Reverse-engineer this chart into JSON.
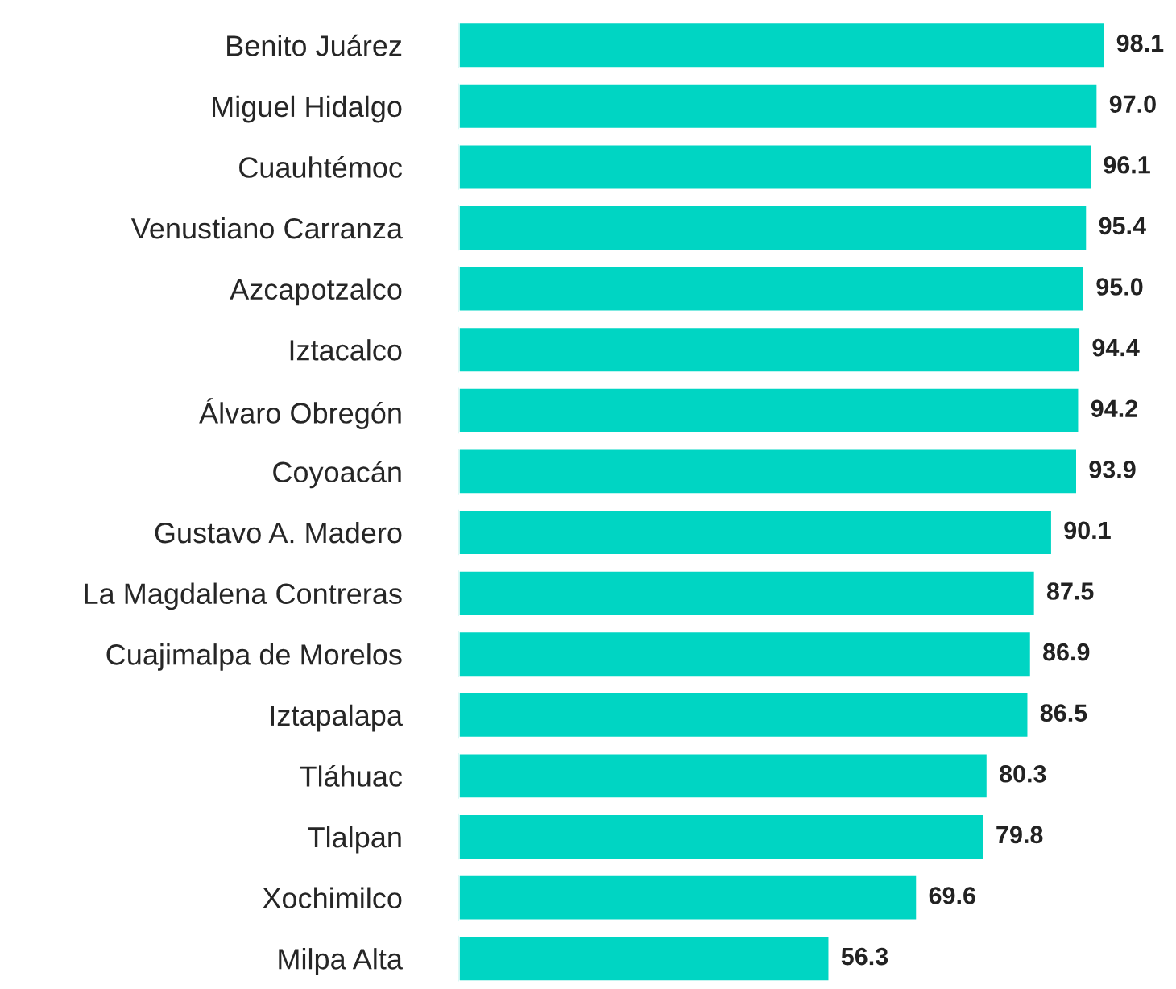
{
  "chart_data": {
    "type": "bar",
    "orientation": "horizontal",
    "grid": false,
    "legend": false,
    "categories": [
      "Benito Juárez",
      "Miguel Hidalgo",
      "Cuauhtémoc",
      "Venustiano Carranza",
      "Azcapotzalco",
      "Iztacalco",
      "Álvaro Obregón",
      "Coyoacán",
      "Gustavo A. Madero",
      "La Magdalena Contreras",
      "Cuajimalpa de Morelos",
      "Iztapalapa",
      "Tláhuac",
      "Tlalpan",
      "Xochimilco",
      "Milpa Alta"
    ],
    "values": [
      98.1,
      97.0,
      96.1,
      95.4,
      95.0,
      94.4,
      94.2,
      93.9,
      90.1,
      87.5,
      86.9,
      86.5,
      80.3,
      79.8,
      69.6,
      56.3
    ],
    "value_labels": [
      "98.1",
      "97.0",
      "96.1",
      "95.4",
      "95.0",
      "94.4",
      "94.2",
      "93.9",
      "90.1",
      "87.5",
      "86.9",
      "86.5",
      "80.3",
      "79.8",
      "69.6",
      "56.3"
    ],
    "color": "#00d5c3"
  }
}
